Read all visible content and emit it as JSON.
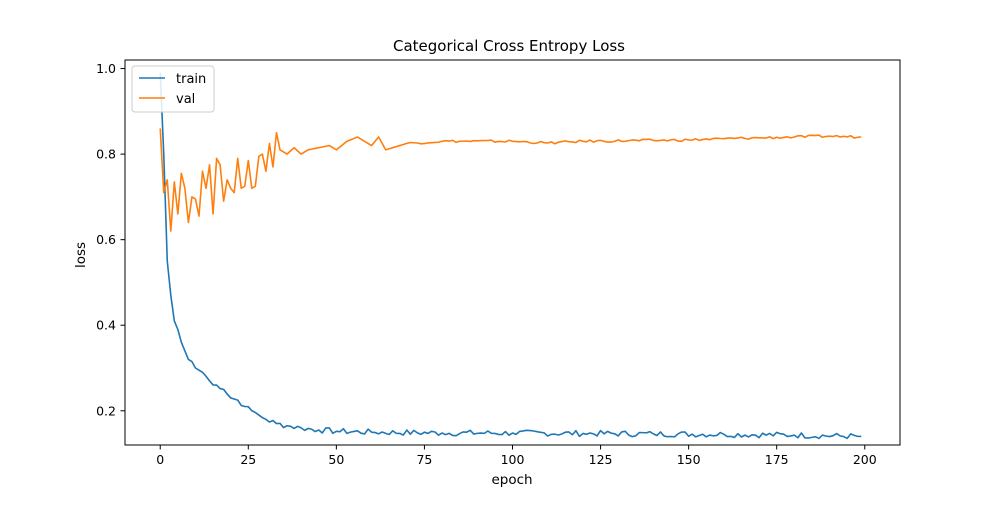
{
  "chart_data": {
    "type": "line",
    "title": "Categorical Cross Entropy Loss",
    "xlabel": "epoch",
    "ylabel": "loss",
    "xlim": [
      -10,
      210
    ],
    "ylim": [
      0.12,
      1.02
    ],
    "xticks": [
      0,
      25,
      50,
      75,
      100,
      125,
      150,
      175,
      200
    ],
    "yticks": [
      0.2,
      0.4,
      0.6,
      0.8,
      1.0
    ],
    "ytick_labels": [
      "0.2",
      "0.4",
      "0.6",
      "0.8",
      "1.0"
    ],
    "grid": false,
    "legend": "top-left",
    "series": [
      {
        "name": "train",
        "color": "#1f77b4",
        "anchors": [
          [
            0,
            0.99
          ],
          [
            1,
            0.8
          ],
          [
            2,
            0.55
          ],
          [
            3,
            0.47
          ],
          [
            4,
            0.41
          ],
          [
            5,
            0.39
          ],
          [
            6,
            0.36
          ],
          [
            7,
            0.34
          ],
          [
            8,
            0.32
          ],
          [
            9,
            0.315
          ],
          [
            10,
            0.3
          ],
          [
            12,
            0.29
          ],
          [
            14,
            0.27
          ],
          [
            16,
            0.26
          ],
          [
            18,
            0.25
          ],
          [
            20,
            0.23
          ],
          [
            22,
            0.225
          ],
          [
            24,
            0.21
          ],
          [
            26,
            0.2
          ],
          [
            28,
            0.19
          ],
          [
            30,
            0.18
          ],
          [
            33,
            0.17
          ],
          [
            36,
            0.165
          ],
          [
            40,
            0.16
          ],
          [
            45,
            0.155
          ],
          [
            50,
            0.152
          ],
          [
            60,
            0.15
          ],
          [
            80,
            0.148
          ],
          [
            100,
            0.148
          ],
          [
            120,
            0.147
          ],
          [
            140,
            0.146
          ],
          [
            160,
            0.145
          ],
          [
            180,
            0.143
          ],
          [
            199,
            0.14
          ]
        ]
      },
      {
        "name": "val",
        "color": "#ff7f0e",
        "anchors": [
          [
            0,
            0.86
          ],
          [
            1,
            0.71
          ],
          [
            2,
            0.74
          ],
          [
            3,
            0.62
          ],
          [
            4,
            0.735
          ],
          [
            5,
            0.66
          ],
          [
            6,
            0.755
          ],
          [
            7,
            0.72
          ],
          [
            8,
            0.64
          ],
          [
            9,
            0.7
          ],
          [
            10,
            0.695
          ],
          [
            11,
            0.655
          ],
          [
            12,
            0.76
          ],
          [
            13,
            0.72
          ],
          [
            14,
            0.775
          ],
          [
            15,
            0.66
          ],
          [
            16,
            0.79
          ],
          [
            17,
            0.775
          ],
          [
            18,
            0.69
          ],
          [
            19,
            0.74
          ],
          [
            20,
            0.72
          ],
          [
            21,
            0.71
          ],
          [
            22,
            0.79
          ],
          [
            23,
            0.72
          ],
          [
            24,
            0.725
          ],
          [
            25,
            0.785
          ],
          [
            26,
            0.72
          ],
          [
            27,
            0.725
          ],
          [
            28,
            0.795
          ],
          [
            29,
            0.8
          ],
          [
            30,
            0.76
          ],
          [
            31,
            0.825
          ],
          [
            32,
            0.77
          ],
          [
            33,
            0.85
          ],
          [
            34,
            0.81
          ],
          [
            36,
            0.8
          ],
          [
            38,
            0.815
          ],
          [
            40,
            0.8
          ],
          [
            42,
            0.81
          ],
          [
            45,
            0.815
          ],
          [
            48,
            0.82
          ],
          [
            50,
            0.81
          ],
          [
            53,
            0.83
          ],
          [
            56,
            0.84
          ],
          [
            60,
            0.82
          ],
          [
            62,
            0.84
          ],
          [
            64,
            0.81
          ],
          [
            66,
            0.815
          ],
          [
            70,
            0.825
          ],
          [
            80,
            0.83
          ],
          [
            100,
            0.83
          ],
          [
            110,
            0.826
          ],
          [
            120,
            0.83
          ],
          [
            140,
            0.832
          ],
          [
            150,
            0.833
          ],
          [
            160,
            0.836
          ],
          [
            170,
            0.838
          ],
          [
            180,
            0.84
          ],
          [
            190,
            0.842
          ],
          [
            199,
            0.84
          ]
        ]
      }
    ]
  }
}
